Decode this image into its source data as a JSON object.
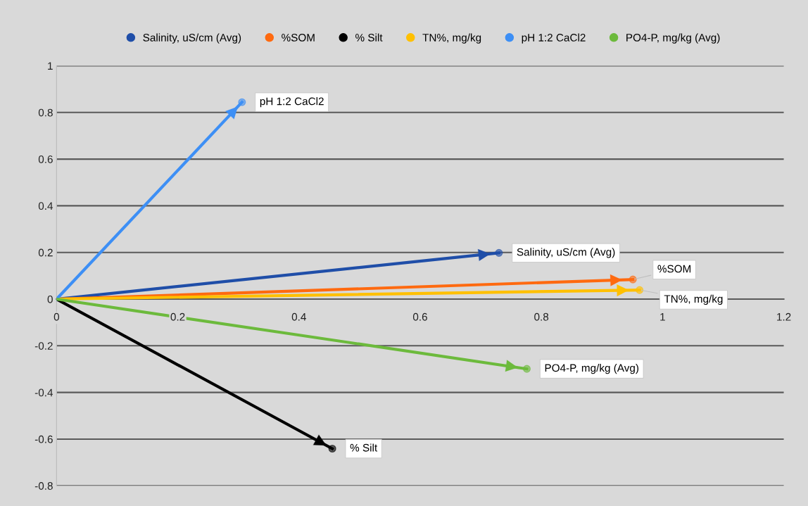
{
  "chart_data": {
    "type": "line",
    "xlim": [
      0,
      1.2
    ],
    "ylim": [
      -0.8,
      1
    ],
    "xticks": [
      0,
      0.2,
      0.4,
      0.6,
      0.8,
      1,
      1.2
    ],
    "yticks": [
      -0.8,
      -0.6,
      -0.4,
      -0.2,
      0,
      0.2,
      0.4,
      0.6,
      0.8,
      1
    ],
    "grid": "y",
    "legend": "top",
    "marker": "circle",
    "series": [
      {
        "name": "Salinity, uS/cm (Avg)",
        "color": "#1f4ea8",
        "x": [
          0,
          0.73
        ],
        "values": [
          0,
          0.198
        ]
      },
      {
        "name": "%SOM",
        "color": "#ff6a10",
        "x": [
          0,
          0.951
        ],
        "values": [
          0,
          0.084
        ]
      },
      {
        "name": "% Silt",
        "color": "#000000",
        "x": [
          0,
          0.455
        ],
        "values": [
          0,
          -0.641
        ]
      },
      {
        "name": "TN%, mg/kg",
        "color": "#ffc000",
        "x": [
          0,
          0.962
        ],
        "values": [
          0,
          0.039
        ]
      },
      {
        "name": "pH 1:2 CaCl2",
        "color": "#3d8ff5",
        "x": [
          0,
          0.306
        ],
        "values": [
          0,
          0.844
        ]
      },
      {
        "name": "PO4-P, mg/kg (Avg)",
        "color": "#6cba3c",
        "x": [
          0,
          0.776
        ],
        "values": [
          0,
          -0.299
        ]
      }
    ]
  }
}
